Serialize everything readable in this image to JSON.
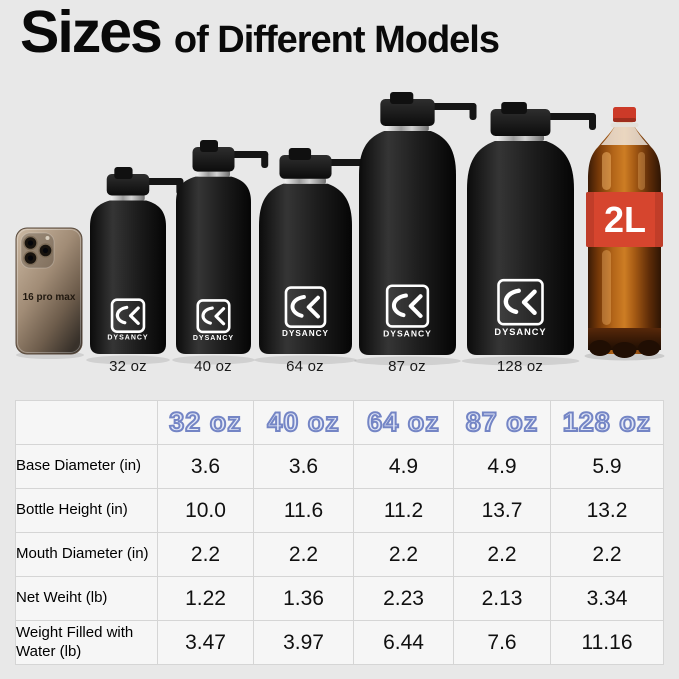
{
  "title": {
    "main": "Sizes",
    "suffix": "of Different Models"
  },
  "phone": {
    "label": "16 pro max"
  },
  "cola": {
    "label": "2L"
  },
  "brand": {
    "name": "DYSANCY"
  },
  "bottles": [
    {
      "label": "32 oz"
    },
    {
      "label": "40 oz"
    },
    {
      "label": "64 oz"
    },
    {
      "label": "87 oz"
    },
    {
      "label": "128 oz"
    }
  ],
  "table": {
    "columns": [
      "32 oz",
      "40 oz",
      "64 oz",
      "87 oz",
      "128 oz"
    ],
    "rows": [
      {
        "label": "Base Diameter (in)",
        "values": [
          "3.6",
          "3.6",
          "4.9",
          "4.9",
          "5.9"
        ]
      },
      {
        "label": "Bottle Height (in)",
        "values": [
          "10.0",
          "11.6",
          "11.2",
          "13.7",
          "13.2"
        ]
      },
      {
        "label": "Mouth Diameter (in)",
        "values": [
          "2.2",
          "2.2",
          "2.2",
          "2.2",
          "2.2"
        ]
      },
      {
        "label": "Net Weiht (lb)",
        "values": [
          "1.22",
          "1.36",
          "2.23",
          "2.13",
          "3.34"
        ]
      },
      {
        "label": "Weight Filled with Water (lb)",
        "values": [
          "3.47",
          "3.97",
          "6.44",
          "7.6",
          "11.16"
        ]
      }
    ]
  },
  "colors": {
    "page_bg": "#e8e8e8",
    "table_bg": "#f6f6f6",
    "table_border": "#d5d5d5",
    "header_fill": "#e3e8f7",
    "header_stroke": "#7485c5",
    "bottle_black": "#141414",
    "cola_red": "#d6452e",
    "steel_ring": "#bfbfbf"
  }
}
